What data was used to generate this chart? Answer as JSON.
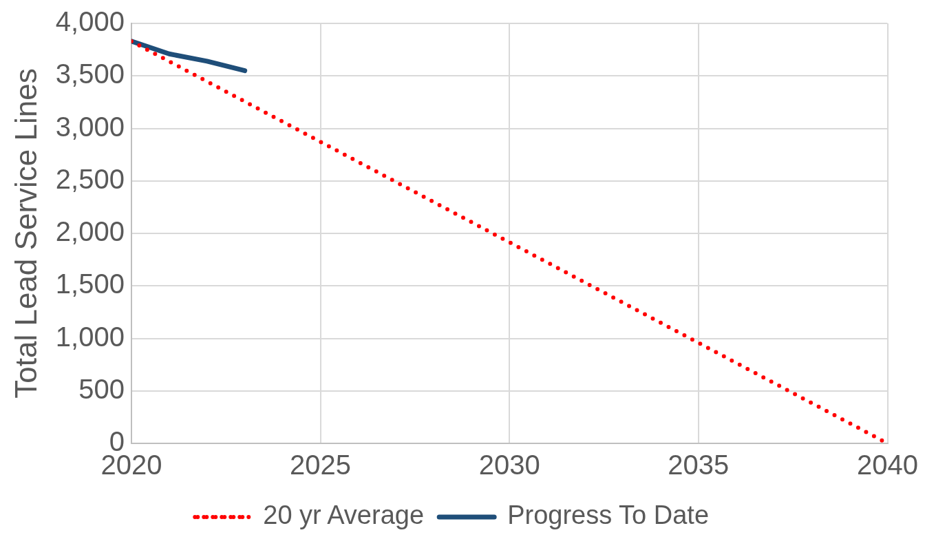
{
  "chart_data": {
    "type": "line",
    "ylabel": "Total Lead Service Lines",
    "series": [
      {
        "name": "20 yr Average",
        "color": "#ff0000",
        "line_style": "dotted",
        "x": [
          2020,
          2040
        ],
        "values": [
          3830,
          0
        ]
      },
      {
        "name": "Progress To Date",
        "color": "#1f4e79",
        "line_style": "solid",
        "x": [
          2020,
          2021,
          2022,
          2023
        ],
        "values": [
          3830,
          3710,
          3640,
          3550
        ]
      }
    ],
    "xlim": [
      2020,
      2040
    ],
    "xticks": [
      2020,
      2025,
      2030,
      2035,
      2040
    ],
    "ylim": [
      0,
      4000
    ],
    "yticks": [
      0,
      500,
      {
        "value": 1000,
        "label": "1,000"
      },
      {
        "value": 1500,
        "label": "1,500"
      },
      {
        "value": 2000,
        "label": "2,000"
      },
      {
        "value": 2500,
        "label": "2,500"
      },
      {
        "value": 3000,
        "label": "3,000"
      },
      {
        "value": 3500,
        "label": "3,500"
      },
      {
        "value": 4000,
        "label": "4,000"
      }
    ],
    "grid": true,
    "legend": "bottom",
    "marker": "none"
  }
}
